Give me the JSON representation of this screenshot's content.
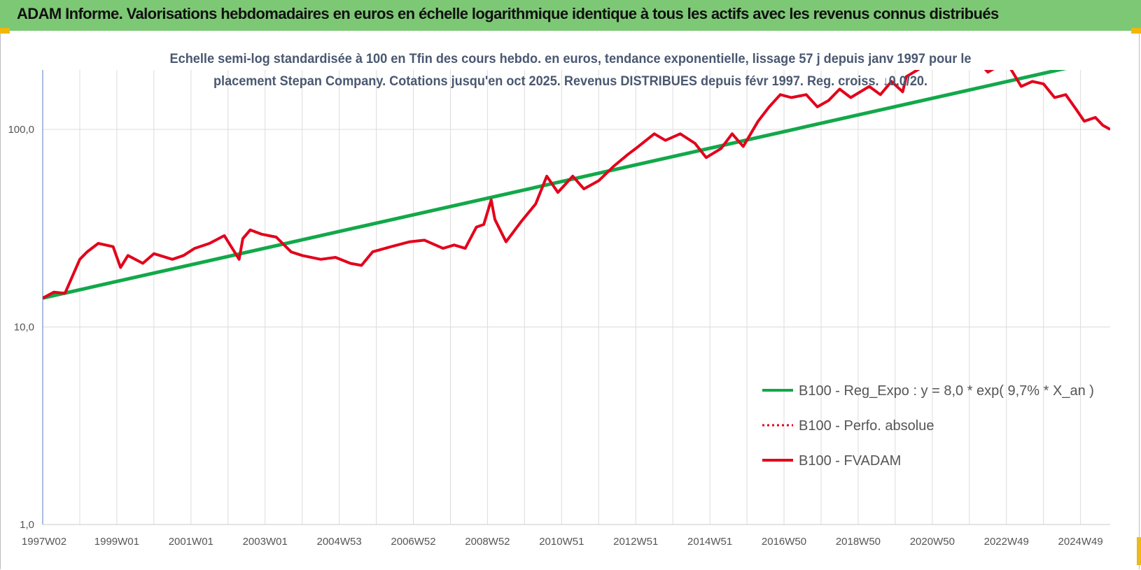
{
  "banner": {
    "title": "ADAM Informe. Valorisations hebdomadaires en euros en échelle logarithmique identique à tous les actifs avec les revenus connus distribués",
    "background": "#7dc875",
    "corner_color": "#f2b705"
  },
  "chart_data": {
    "type": "line",
    "title_lines": [
      "Echelle semi-log standardisée à 100 en Tfin des cours hebdo. en euros, tendance exponentielle, lissage 57 j depuis janv 1997 pour le",
      "placement Stepan Company. Cotations jusqu'en oct 2025. Revenus DISTRIBUES depuis févr 1997.  Reg. croiss. ↓0,0/20."
    ],
    "xlabel": "",
    "ylabel": "",
    "y_scale": "log",
    "ylim": [
      1,
      200
    ],
    "xlim": [
      1997.0,
      2025.8
    ],
    "grid": true,
    "legend_position": "bottom-right",
    "x_ticks": [
      {
        "x": 1997.0,
        "label": "1997W02"
      },
      {
        "x": 1999.0,
        "label": "1999W01"
      },
      {
        "x": 2001.0,
        "label": "2001W01"
      },
      {
        "x": 2003.0,
        "label": "2003W01"
      },
      {
        "x": 2005.0,
        "label": "2004W53"
      },
      {
        "x": 2007.0,
        "label": "2006W52"
      },
      {
        "x": 2009.0,
        "label": "2008W52"
      },
      {
        "x": 2011.0,
        "label": "2010W51"
      },
      {
        "x": 2013.0,
        "label": "2012W51"
      },
      {
        "x": 2015.0,
        "label": "2014W51"
      },
      {
        "x": 2017.0,
        "label": "2016W50"
      },
      {
        "x": 2019.0,
        "label": "2018W50"
      },
      {
        "x": 2021.0,
        "label": "2020W50"
      },
      {
        "x": 2023.0,
        "label": "2022W49"
      },
      {
        "x": 2025.0,
        "label": "2024W49"
      }
    ],
    "y_ticks": [
      {
        "y": 1,
        "label": "1,0"
      },
      {
        "y": 10,
        "label": "10,0"
      },
      {
        "y": 100,
        "label": "100,0"
      }
    ],
    "series": [
      {
        "name": "B100 - Reg_Expo : y = 8,0 * exp( 9,7% *  X_an )",
        "color": "#12a84a",
        "style": "solid",
        "x": [
          1997.0,
          2025.8
        ],
        "values": [
          14.0,
          229.0
        ]
      },
      {
        "name": "B100 - Perfo. absolue",
        "color": "#e3001b",
        "style": "dotted",
        "x": [],
        "values": []
      },
      {
        "name": "B100 - FVADAM",
        "color": "#e3001b",
        "style": "solid",
        "x": [
          1997.0,
          1997.3,
          1997.6,
          1998.0,
          1998.2,
          1998.5,
          1998.9,
          1999.1,
          1999.3,
          1999.7,
          2000.0,
          2000.5,
          2000.8,
          2001.1,
          2001.5,
          2001.9,
          2002.3,
          2002.4,
          2002.6,
          2002.9,
          2003.3,
          2003.7,
          2004.0,
          2004.5,
          2004.9,
          2005.3,
          2005.6,
          2005.9,
          2006.4,
          2006.9,
          2007.3,
          2007.8,
          2008.1,
          2008.4,
          2008.7,
          2008.9,
          2009.1,
          2009.2,
          2009.5,
          2009.9,
          2010.3,
          2010.6,
          2010.9,
          2011.3,
          2011.6,
          2012.0,
          2012.4,
          2012.8,
          2013.0,
          2013.5,
          2013.8,
          2014.2,
          2014.6,
          2014.9,
          2015.3,
          2015.6,
          2015.9,
          2016.3,
          2016.6,
          2016.9,
          2017.2,
          2017.6,
          2017.9,
          2018.2,
          2018.5,
          2018.8,
          2019.3,
          2019.6,
          2019.9,
          2020.2,
          2020.3,
          2020.6,
          2020.9,
          2021.2,
          2021.6,
          2021.9,
          2022.2,
          2022.5,
          2022.8,
          2023.1,
          2023.4,
          2023.7,
          2024.0,
          2024.3,
          2024.6,
          2024.9,
          2025.1,
          2025.4,
          2025.6,
          2025.8
        ],
        "values": [
          14.0,
          15.0,
          14.8,
          22.0,
          24.0,
          26.5,
          25.5,
          20.0,
          23.0,
          21.0,
          23.5,
          22.0,
          23.0,
          25.0,
          26.5,
          29.0,
          22.0,
          28.0,
          31.0,
          29.5,
          28.5,
          24.0,
          23.0,
          22.0,
          22.5,
          21.0,
          20.5,
          24.0,
          25.5,
          27.0,
          27.5,
          25.0,
          26.0,
          25.0,
          32.0,
          33.0,
          44.0,
          35.0,
          27.0,
          34.0,
          42.0,
          58.0,
          48.0,
          58.0,
          50.0,
          55.0,
          65.0,
          75.0,
          80.0,
          95.0,
          88.0,
          95.0,
          85.0,
          72.0,
          80.0,
          95.0,
          82.0,
          110.0,
          130.0,
          150.0,
          145.0,
          150.0,
          130.0,
          140.0,
          160.0,
          145.0,
          165.0,
          150.0,
          175.0,
          155.0,
          185.0,
          200.0,
          215.0,
          235.0,
          215.0,
          225.0,
          225.0,
          195.0,
          210.0,
          205.0,
          165.0,
          175.0,
          170.0,
          145.0,
          150.0,
          125.0,
          110.0,
          115.0,
          105.0,
          100.0
        ]
      }
    ]
  }
}
